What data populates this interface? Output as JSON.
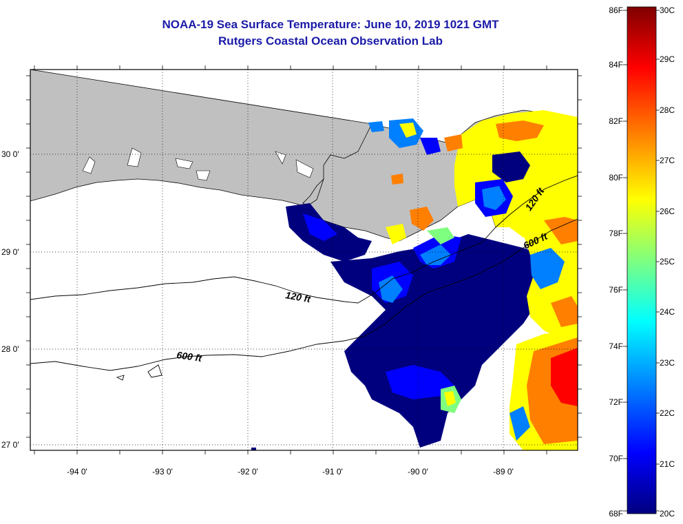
{
  "header": {
    "title_line1": "NOAA-19 Sea Surface Temperature:  June 10, 2019 1021 GMT",
    "title_line2": "Rutgers Coastal Ocean Observation Lab"
  },
  "map": {
    "lon_labels": [
      "-94 0'",
      "-93 0'",
      "-92 0'",
      "-91 0'",
      "-90 0'",
      "-89 0'"
    ],
    "lat_labels": [
      "30 0'",
      "29 0'",
      "28 0'",
      "27 0'"
    ],
    "contours": [
      {
        "label": "120 ft"
      },
      {
        "label": "600 ft"
      },
      {
        "label": "120 ft"
      },
      {
        "label": "600 ft"
      }
    ],
    "land_color": "#c0c0c0",
    "cloud_color": "#ffffff"
  },
  "colorbar": {
    "fahrenheit_labels": [
      "86F",
      "84F",
      "82F",
      "80F",
      "78F",
      "76F",
      "74F",
      "72F",
      "70F",
      "68F"
    ],
    "celsius_labels": [
      "30C",
      "29C",
      "28C",
      "27C",
      "26C",
      "25C",
      "24C",
      "23C",
      "22C",
      "21C",
      "20C"
    ],
    "colors": [
      "#00007f",
      "#0000ff",
      "#007fff",
      "#00ffff",
      "#7fff7f",
      "#ffff00",
      "#ff7f00",
      "#ff0000",
      "#7f0000"
    ]
  }
}
